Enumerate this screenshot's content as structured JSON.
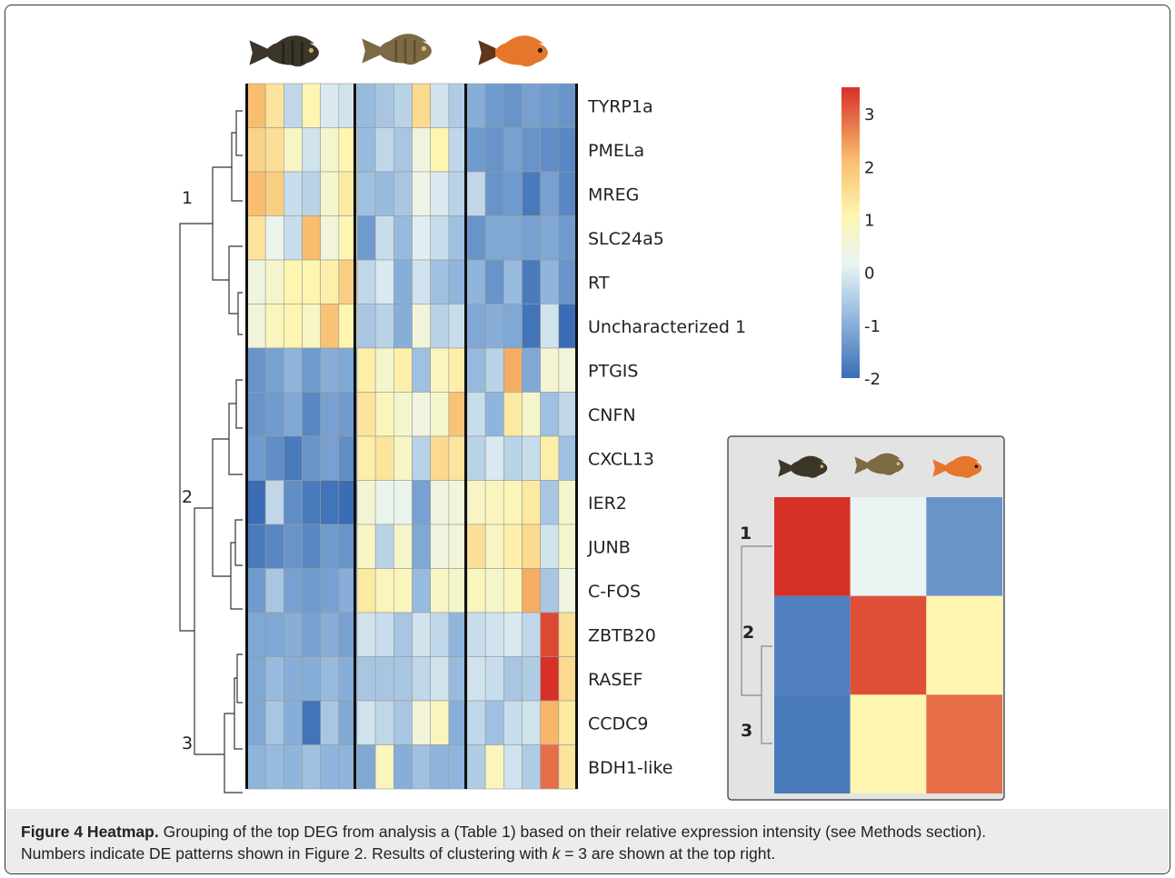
{
  "figure": {
    "caption_label": "Figure 4 Heatmap.",
    "caption_body_1": " Grouping of the top DEG from analysis a (Table 1) based on their relative expression intensity (see Methods section).",
    "caption_body_2": "Numbers indicate DE patterns shown in Figure 2. Results of clustering with ",
    "caption_k": "k",
    "caption_body_3": " = 3 are shown at the top right."
  },
  "colors": {
    "low": "#3a6db5",
    "mid_low": "#8fb5dc",
    "mid": "#e9f4f3",
    "mid_high": "#fdf5b0",
    "high_mid": "#f9bd6e",
    "high": "#d73027",
    "dendrogram": "#333333"
  },
  "chart_data": [
    {
      "type": "heatmap",
      "title": "",
      "rows": [
        "TYRP1a",
        "PMELa",
        "MREG",
        "SLC24a5",
        "RT",
        "Uncharacterized 1",
        "PTGIS",
        "CNFN",
        "CXCL13",
        "IER2",
        "JUNB",
        "C-FOS",
        "ZBTB20",
        "RASEF",
        "CCDC9",
        "BDH1-like"
      ],
      "column_groups": [
        "fish-1",
        "fish-2",
        "fish-3"
      ],
      "columns_per_group": 6,
      "cluster_labels": [
        "1",
        "2",
        "3"
      ],
      "row_clusters": [
        1,
        1,
        1,
        1,
        1,
        1,
        2,
        2,
        2,
        2,
        2,
        2,
        3,
        3,
        3,
        3
      ],
      "values": [
        [
          2.0,
          1.3,
          -0.5,
          1.0,
          -0.2,
          -0.3,
          -1.0,
          -0.8,
          -0.6,
          1.5,
          -0.3,
          -0.7,
          -1.2,
          -1.5,
          -1.6,
          -1.4,
          -1.5,
          -1.6
        ],
        [
          1.6,
          1.4,
          0.7,
          -0.3,
          0.6,
          1.0,
          -1.0,
          -0.5,
          -0.8,
          0.3,
          1.0,
          -0.5,
          -1.5,
          -1.6,
          -1.4,
          -1.6,
          -1.7,
          -1.8
        ],
        [
          2.0,
          1.7,
          -0.4,
          -0.6,
          0.6,
          1.2,
          -0.9,
          -1.0,
          -0.8,
          0.2,
          -0.2,
          -0.6,
          -0.5,
          -1.6,
          -1.5,
          -2.0,
          -1.4,
          -1.8
        ],
        [
          1.3,
          0.1,
          -0.4,
          2.0,
          0.4,
          1.0,
          -1.5,
          -0.4,
          -1.0,
          -0.1,
          -0.4,
          -0.9,
          -1.6,
          -1.3,
          -1.3,
          -1.4,
          -1.3,
          -1.5
        ],
        [
          0.3,
          0.6,
          1.0,
          1.0,
          1.1,
          1.7,
          -0.5,
          -0.2,
          -1.2,
          -0.3,
          -0.9,
          -1.1,
          -1.1,
          -1.6,
          -1.0,
          -2.0,
          -1.1,
          -1.6
        ],
        [
          0.4,
          0.8,
          1.0,
          0.7,
          1.9,
          1.0,
          -0.8,
          -0.6,
          -1.2,
          0.4,
          -0.6,
          -0.4,
          -1.3,
          -1.2,
          -1.3,
          -2.1,
          -0.3,
          -2.3
        ],
        [
          -1.6,
          -1.4,
          -1.1,
          -1.5,
          -1.2,
          -1.3,
          1.1,
          0.6,
          1.1,
          -0.9,
          0.8,
          1.1,
          -1.0,
          -0.6,
          2.2,
          -1.3,
          0.5,
          0.4
        ],
        [
          -1.6,
          -1.5,
          -1.3,
          -1.8,
          -1.4,
          -1.5,
          1.3,
          0.8,
          0.6,
          0.3,
          0.6,
          1.9,
          -0.4,
          -1.1,
          1.2,
          0.6,
          -0.9,
          -0.5
        ],
        [
          -1.5,
          -1.7,
          -2.0,
          -1.6,
          -1.4,
          -1.7,
          1.1,
          1.3,
          0.7,
          -0.6,
          1.5,
          1.3,
          -0.6,
          -0.2,
          -0.6,
          -0.4,
          1.1,
          -0.9
        ],
        [
          -2.2,
          -0.5,
          -1.7,
          -2.0,
          -2.1,
          -2.2,
          0.5,
          0.1,
          0.1,
          -1.4,
          0.3,
          0.4,
          0.7,
          0.8,
          0.9,
          1.2,
          -0.8,
          0.6
        ],
        [
          -2.0,
          -1.8,
          -1.6,
          -1.8,
          -1.5,
          -1.6,
          0.7,
          -0.6,
          0.6,
          -1.3,
          0.3,
          0.4,
          1.4,
          0.7,
          1.1,
          1.5,
          -0.3,
          0.6
        ],
        [
          -1.5,
          -0.8,
          -1.4,
          -1.5,
          -1.4,
          -1.2,
          1.2,
          0.8,
          0.8,
          -1.0,
          0.7,
          0.6,
          0.8,
          0.6,
          0.8,
          2.2,
          -0.8,
          0.3
        ],
        [
          -1.3,
          -1.3,
          -1.2,
          -1.4,
          -1.2,
          -1.4,
          -0.3,
          -0.4,
          -0.8,
          -0.3,
          -0.5,
          -1.1,
          -0.4,
          -0.3,
          -0.2,
          -0.5,
          3.5,
          1.4
        ],
        [
          -1.3,
          -1.0,
          -1.2,
          -1.2,
          -1.0,
          -1.2,
          -0.8,
          -0.8,
          -0.8,
          -0.5,
          -0.3,
          -1.0,
          -0.3,
          -0.4,
          -0.8,
          -0.7,
          3.9,
          1.5
        ],
        [
          -1.3,
          -0.8,
          -1.2,
          -2.1,
          -0.8,
          -1.3,
          -0.3,
          -0.5,
          -0.8,
          0.4,
          0.8,
          -1.2,
          -0.5,
          -0.9,
          -0.4,
          -0.3,
          2.1,
          1.2
        ],
        [
          -1.1,
          -1.0,
          -1.1,
          -0.9,
          -1.1,
          -1.1,
          -1.3,
          0.8,
          -1.2,
          -0.9,
          -1.1,
          -1.1,
          -0.7,
          0.8,
          -0.3,
          -0.7,
          3.0,
          1.3
        ]
      ],
      "color_scale": {
        "min": -2,
        "max": 3.5,
        "ticks": [
          3,
          2,
          1,
          0,
          -1,
          -2
        ]
      }
    },
    {
      "type": "heatmap",
      "title": "",
      "rows": [
        "1",
        "2",
        "3"
      ],
      "columns": [
        "fish-1",
        "fish-2",
        "fish-3"
      ],
      "values": [
        [
          3.8,
          0.0,
          -1.6
        ],
        [
          -1.9,
          3.4,
          1.0
        ],
        [
          -2.0,
          1.0,
          3.0
        ]
      ]
    }
  ]
}
